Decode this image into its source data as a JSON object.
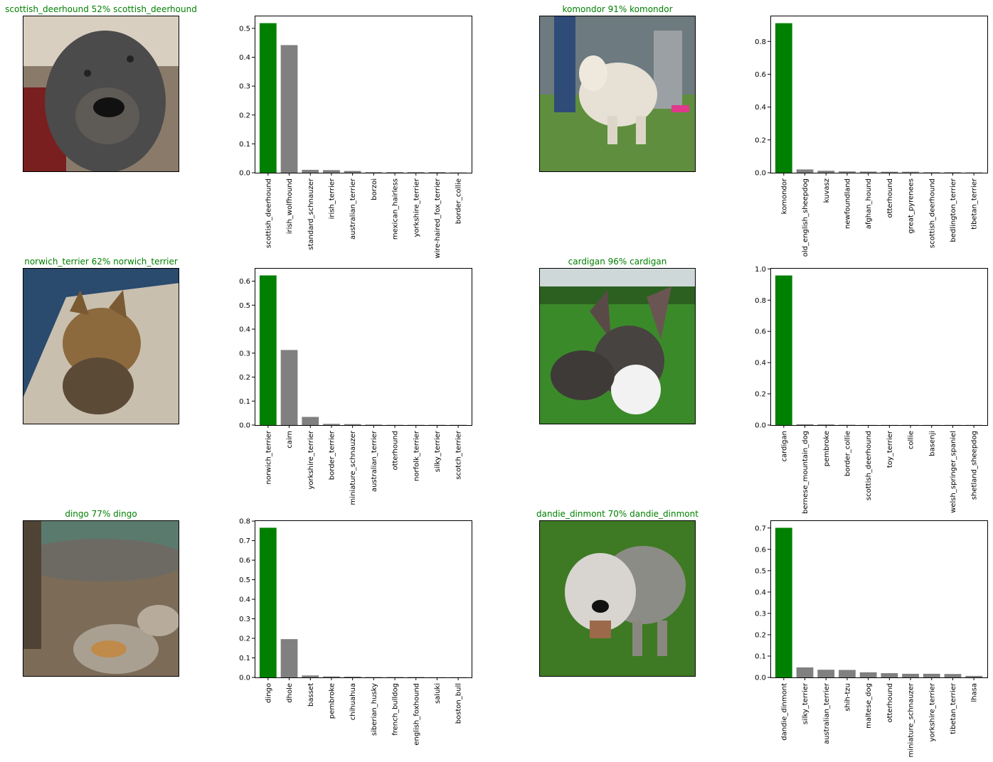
{
  "colors": {
    "predicted": "#008000",
    "other": "#808080",
    "title_correct": "#008000"
  },
  "panels": [
    {
      "title": "scottish_deerhound 52% scottish_deerhound",
      "photo": "scottish-deerhound-photo"
    },
    {
      "title": "komondor 91% komondor",
      "photo": "komondor-photo"
    },
    {
      "title": "norwich_terrier 62% norwich_terrier",
      "photo": "norwich-terrier-photo"
    },
    {
      "title": "cardigan 96% cardigan",
      "photo": "cardigan-photo"
    },
    {
      "title": "dingo 77% dingo",
      "photo": "dingo-photo"
    },
    {
      "title": "dandie_dinmont 70% dandie_dinmont",
      "photo": "dandie-dinmont-photo"
    }
  ],
  "chart_data": [
    {
      "type": "bar",
      "categories": [
        "scottish_deerhound",
        "irish_wolfhound",
        "standard_schnauzer",
        "irish_terrier",
        "australian_terrier",
        "borzoi",
        "mexican_hairless",
        "yorkshire_terrier",
        "wire-haired_fox_terrier",
        "border_collie"
      ],
      "values": [
        0.518,
        0.442,
        0.01,
        0.009,
        0.006,
        0.002,
        0.002,
        0.002,
        0.002,
        0.001
      ],
      "yticks": [
        "0.0",
        "0.1",
        "0.2",
        "0.3",
        "0.4",
        "0.5"
      ],
      "ylim": [
        0,
        0.544
      ],
      "highlight": 0
    },
    {
      "type": "bar",
      "categories": [
        "komondor",
        "old_english_sheepdog",
        "kuvasz",
        "newfoundland",
        "afghan_hound",
        "otterhound",
        "great_pyrenees",
        "scottish_deerhound",
        "bedlington_terrier",
        "tibetan_terrier"
      ],
      "values": [
        0.911,
        0.02,
        0.012,
        0.008,
        0.007,
        0.006,
        0.006,
        0.003,
        0.003,
        0.002
      ],
      "yticks": [
        "0.0",
        "0.2",
        "0.4",
        "0.6",
        "0.8"
      ],
      "ylim": [
        0,
        0.957
      ],
      "highlight": 0
    },
    {
      "type": "bar",
      "categories": [
        "norwich_terrier",
        "cairn",
        "yorkshire_terrier",
        "border_terrier",
        "miniature_schnauzer",
        "australian_terrier",
        "otterhound",
        "norfolk_terrier",
        "silky_terrier",
        "scotch_terrier"
      ],
      "values": [
        0.624,
        0.313,
        0.034,
        0.005,
        0.004,
        0.002,
        0.001,
        0.001,
        0.001,
        0.001
      ],
      "yticks": [
        "0.0",
        "0.1",
        "0.2",
        "0.3",
        "0.4",
        "0.5",
        "0.6"
      ],
      "ylim": [
        0,
        0.655
      ],
      "highlight": 0
    },
    {
      "type": "bar",
      "categories": [
        "cardigan",
        "bernese_mountain_dog",
        "pembroke",
        "border_collie",
        "scottish_deerhound",
        "toy_terrier",
        "collie",
        "basenji",
        "welsh_springer_spaniel",
        "shetland_sheepdog"
      ],
      "values": [
        0.958,
        0.005,
        0.004,
        0.002,
        0.001,
        0.001,
        0.001,
        0.001,
        0.001,
        0.001
      ],
      "yticks": [
        "0.0",
        "0.2",
        "0.4",
        "0.6",
        "0.8",
        "1.0"
      ],
      "ylim": [
        0,
        1.006
      ],
      "highlight": 0
    },
    {
      "type": "bar",
      "categories": [
        "dingo",
        "dhole",
        "basset",
        "pembroke",
        "chihuahua",
        "siberian_husky",
        "french_bulldog",
        "english_foxhound",
        "saluki",
        "boston_bull"
      ],
      "values": [
        0.766,
        0.196,
        0.01,
        0.005,
        0.004,
        0.002,
        0.002,
        0.002,
        0.001,
        0.001
      ],
      "yticks": [
        "0.0",
        "0.1",
        "0.2",
        "0.3",
        "0.4",
        "0.5",
        "0.6",
        "0.7",
        "0.8"
      ],
      "ylim": [
        0,
        0.804
      ],
      "highlight": 0
    },
    {
      "type": "bar",
      "categories": [
        "dandie_dinmont",
        "silky_terrier",
        "australian_terrier",
        "shih-tzu",
        "maltese_dog",
        "otterhound",
        "miniature_schnauzer",
        "yorkshire_terrier",
        "tibetan_terrier",
        "lhasa"
      ],
      "values": [
        0.701,
        0.047,
        0.036,
        0.035,
        0.024,
        0.02,
        0.017,
        0.017,
        0.016,
        0.007
      ],
      "yticks": [
        "0.0",
        "0.1",
        "0.2",
        "0.3",
        "0.4",
        "0.5",
        "0.6",
        "0.7"
      ],
      "ylim": [
        0,
        0.736
      ],
      "highlight": 0
    }
  ]
}
